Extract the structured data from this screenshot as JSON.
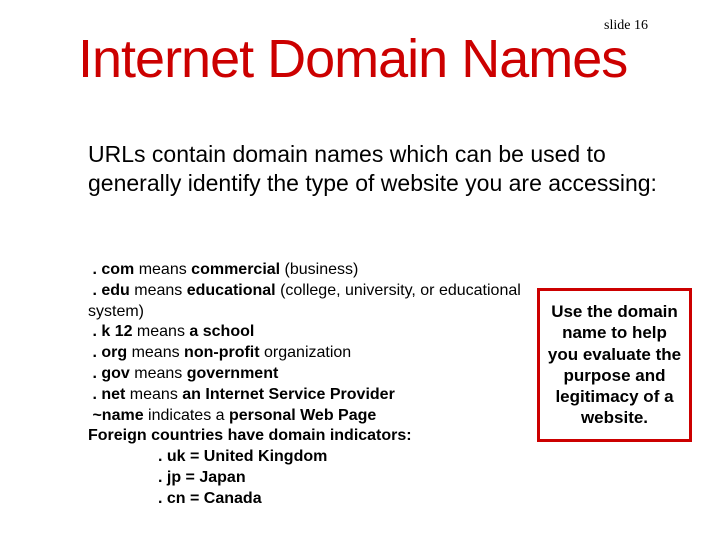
{
  "slide_number": "slide 16",
  "title": "Internet Domain Names",
  "intro": "URLs contain domain names which can be used to generally identify the type of website you are accessing:",
  "domains": {
    "com_ext": ". com",
    "com_means": " means ",
    "com_bold": "commercial",
    "com_tail": " (business)",
    "edu_ext": ". edu",
    "edu_means": " means ",
    "edu_bold": "educational",
    "edu_tail": " (college, university, or educational system)",
    "k12_ext": ". k 12",
    "k12_means": " means ",
    "k12_bold": "a school",
    "org_ext": ". org",
    "org_means": " means ",
    "org_bold": "non-profit",
    "org_tail": " organization",
    "gov_ext": ". gov",
    "gov_means": " means ",
    "gov_bold": "government",
    "net_ext": ". net",
    "net_means": " means ",
    "net_bold": "an Internet Service Provider",
    "tilde_ext": "~name",
    "tilde_means": " indicates a ",
    "tilde_bold": "personal Web Page",
    "foreign": "Foreign countries have domain indicators:",
    "uk": ". uk = United Kingdom",
    "jp": ". jp = Japan",
    "cn": ". cn = Canada"
  },
  "callout": "Use the domain name to help you evaluate the purpose and legitimacy of a website.",
  "colors": {
    "title_color": "#cc0000",
    "border_color": "#cc0000",
    "text_color": "#000000",
    "background": "#ffffff"
  },
  "typography": {
    "title_fontsize": 54,
    "intro_fontsize": 23,
    "body_fontsize": 16,
    "callout_fontsize": 17,
    "slidenum_fontsize": 14
  }
}
